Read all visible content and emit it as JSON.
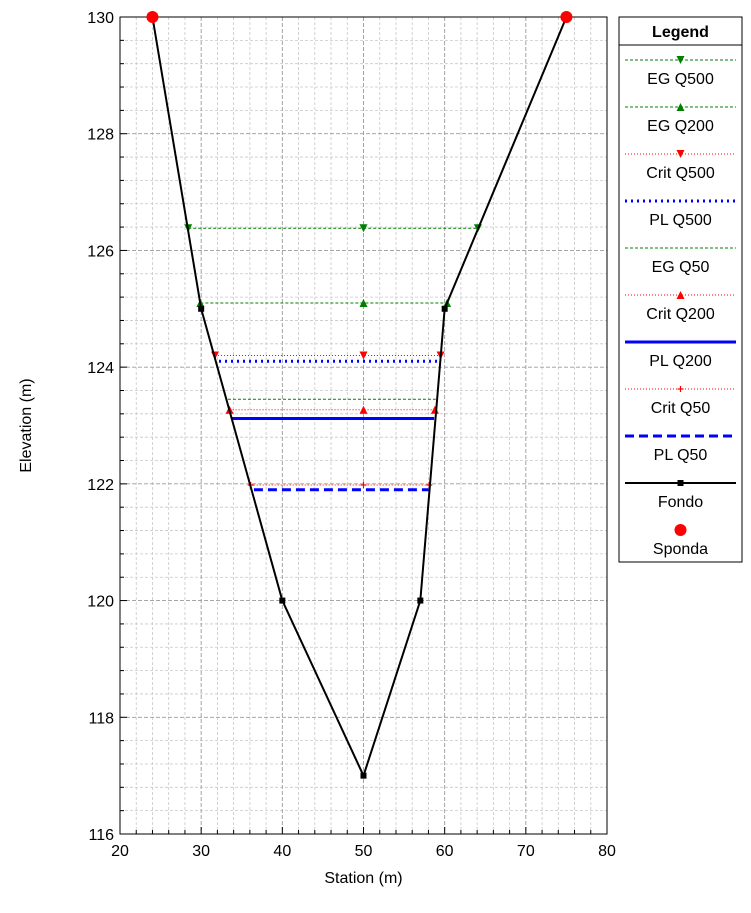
{
  "chart_data": {
    "type": "line",
    "xlabel": "Station (m)",
    "ylabel": "Elevation (m)",
    "xlim": [
      20,
      80
    ],
    "ylim": [
      116,
      130
    ],
    "x_ticks": [
      20,
      30,
      40,
      50,
      60,
      70,
      80
    ],
    "y_ticks": [
      116,
      118,
      120,
      122,
      124,
      126,
      128,
      130
    ],
    "grid": true,
    "legend": {
      "title": "Legend",
      "placement": "right",
      "entries": [
        "EG Q500",
        "EG Q200",
        "Crit Q500",
        "PL Q500",
        "EG Q50",
        "Crit Q200",
        "PL Q200",
        "Crit Q50",
        "PL Q50",
        "Fondo",
        "Sponda"
      ]
    },
    "series": [
      {
        "name": "EG Q500",
        "color": "#008000",
        "line": "dashed-thin",
        "marker": "triangle-down",
        "x": [
          28.4,
          50,
          64.1
        ],
        "y": [
          126.38,
          126.38,
          126.38
        ]
      },
      {
        "name": "EG Q200",
        "color": "#008000",
        "line": "dashed-thin",
        "marker": "triangle-up",
        "x": [
          29.9,
          50,
          60.3
        ],
        "y": [
          125.1,
          125.1,
          125.1
        ]
      },
      {
        "name": "Crit Q500",
        "color": "#ff0000",
        "line": "dotted-thin",
        "marker": "triangle-down",
        "x": [
          31.7,
          50,
          59.5
        ],
        "y": [
          124.2,
          124.2,
          124.2
        ]
      },
      {
        "name": "PL Q500",
        "color": "#0000ff",
        "line": "dotted-thick",
        "marker": "none",
        "x": [
          32.2,
          59.3
        ],
        "y": [
          124.1,
          124.1
        ]
      },
      {
        "name": "EG Q50",
        "color": "#008000",
        "line": "dashed-thin",
        "marker": "none",
        "x": [
          33.3,
          58.9
        ],
        "y": [
          123.45,
          123.45
        ]
      },
      {
        "name": "Crit Q200",
        "color": "#ff0000",
        "line": "dotted-thin",
        "marker": "triangle-up",
        "x": [
          33.5,
          50,
          58.8
        ],
        "y": [
          123.27,
          123.27,
          123.27
        ]
      },
      {
        "name": "PL Q200",
        "color": "#0000ff",
        "line": "solid-thick",
        "marker": "none",
        "x": [
          33.8,
          58.7
        ],
        "y": [
          123.12,
          123.12
        ]
      },
      {
        "name": "Crit Q50",
        "color": "#ff0000",
        "line": "dotted-thin",
        "marker": "plus",
        "x": [
          36.1,
          50,
          58.1
        ],
        "y": [
          121.98,
          121.98,
          121.98
        ]
      },
      {
        "name": "PL Q50",
        "color": "#0000ff",
        "line": "dashed-thick",
        "marker": "none",
        "x": [
          36.5,
          58.0
        ],
        "y": [
          121.9,
          121.9
        ]
      },
      {
        "name": "Fondo",
        "color": "#000000",
        "line": "solid",
        "marker": "square",
        "x": [
          24,
          30,
          40,
          50,
          57,
          60,
          75
        ],
        "y": [
          130,
          125,
          120,
          117,
          120,
          125,
          130
        ],
        "marker_x": [
          30,
          40,
          50,
          57,
          60
        ],
        "marker_y": [
          125,
          120,
          117,
          120,
          125
        ]
      },
      {
        "name": "Sponda",
        "color": "#ff0000",
        "line": "none",
        "marker": "circle",
        "x": [
          24,
          75
        ],
        "y": [
          130,
          130
        ]
      }
    ]
  }
}
